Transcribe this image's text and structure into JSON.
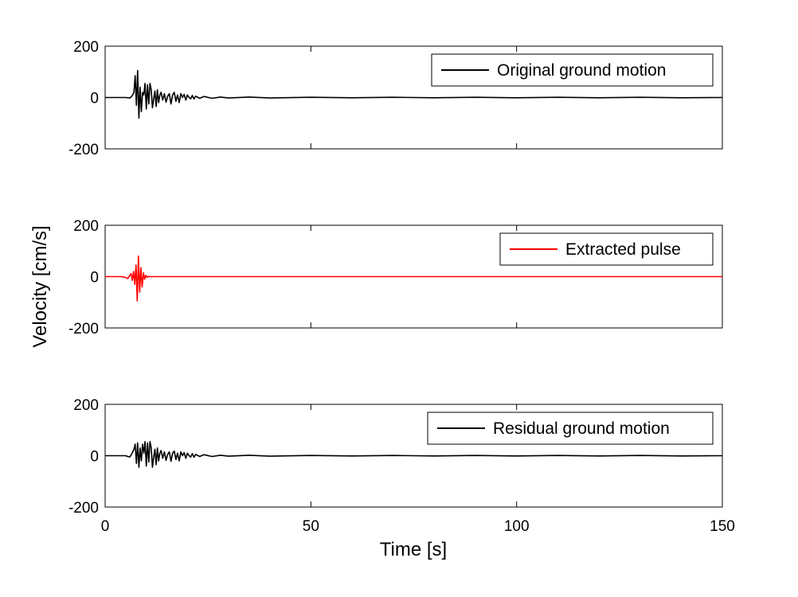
{
  "chart_data": [
    {
      "type": "line",
      "xlim": [
        0,
        150
      ],
      "ylim": [
        -200,
        200
      ],
      "yticks": [
        "200",
        "0",
        "-200"
      ],
      "legend": "top-right",
      "series": [
        {
          "name": "Original ground motion",
          "color": "#000000",
          "x": [
            0,
            5,
            6,
            6.5,
            7,
            7.3,
            7.6,
            7.9,
            8.2,
            8.5,
            8.8,
            9.1,
            9.4,
            9.7,
            10,
            10.3,
            10.6,
            10.9,
            11.2,
            11.5,
            11.8,
            12.1,
            12.4,
            12.7,
            13,
            13.3,
            13.6,
            14,
            14.4,
            14.8,
            15.2,
            15.6,
            16,
            16.4,
            16.8,
            17.2,
            17.6,
            18,
            18.4,
            18.8,
            19.2,
            19.6,
            20,
            20.4,
            20.8,
            21.2,
            21.6,
            22,
            23,
            24,
            26,
            28,
            30,
            35,
            40,
            50,
            60,
            70,
            80,
            90,
            100,
            110,
            120,
            130,
            140,
            150
          ],
          "y": [
            0,
            0,
            -2,
            5,
            20,
            85,
            -30,
            105,
            -80,
            40,
            -55,
            20,
            10,
            55,
            -45,
            50,
            -25,
            55,
            30,
            -40,
            -5,
            25,
            -35,
            30,
            -20,
            10,
            20,
            -10,
            15,
            -18,
            5,
            15,
            -25,
            10,
            20,
            -15,
            10,
            -20,
            15,
            0,
            12,
            -10,
            10,
            0,
            -5,
            8,
            -6,
            5,
            -3,
            4,
            -3,
            2,
            -2,
            2,
            -2,
            1,
            -1,
            1,
            -1,
            1,
            -1,
            1,
            -1,
            1,
            -1,
            0
          ]
        }
      ]
    },
    {
      "type": "line",
      "xlim": [
        0,
        150
      ],
      "ylim": [
        -200,
        200
      ],
      "yticks": [
        "200",
        "0",
        "-200"
      ],
      "legend": "top-right",
      "series": [
        {
          "name": "Extracted pulse",
          "color": "#ff0000",
          "x": [
            0,
            4,
            5,
            5.5,
            6,
            6.3,
            6.6,
            6.9,
            7.2,
            7.5,
            7.8,
            8.1,
            8.4,
            8.7,
            9.0,
            9.3,
            9.6,
            9.9,
            10.2,
            10.6,
            11,
            12,
            150
          ],
          "y": [
            0,
            0,
            -3,
            -8,
            5,
            12,
            -15,
            20,
            -30,
            45,
            -95,
            80,
            -60,
            35,
            -40,
            15,
            -10,
            5,
            -3,
            1,
            0,
            0,
            0
          ]
        }
      ]
    },
    {
      "type": "line",
      "xlim": [
        0,
        150
      ],
      "ylim": [
        -200,
        200
      ],
      "yticks": [
        "200",
        "0",
        "-200"
      ],
      "xticks": [
        "0",
        "50",
        "100",
        "150"
      ],
      "legend": "top-right",
      "series": [
        {
          "name": "Residual ground motion",
          "color": "#000000",
          "x": [
            0,
            4,
            5,
            5.5,
            6,
            6.5,
            7,
            7.3,
            7.6,
            7.9,
            8.2,
            8.5,
            8.8,
            9.1,
            9.4,
            9.7,
            10,
            10.3,
            10.6,
            10.9,
            11.2,
            11.5,
            11.8,
            12.1,
            12.4,
            12.7,
            13,
            13.3,
            13.6,
            14,
            14.4,
            14.8,
            15.2,
            15.6,
            16,
            16.4,
            16.8,
            17.2,
            17.6,
            18,
            18.4,
            18.8,
            19.2,
            19.6,
            20,
            20.4,
            20.8,
            21.2,
            21.6,
            22,
            23,
            24,
            26,
            28,
            30,
            35,
            40,
            50,
            60,
            70,
            80,
            90,
            100,
            110,
            120,
            130,
            140,
            150
          ],
          "y": [
            0,
            0,
            0,
            -3,
            -5,
            8,
            25,
            45,
            -30,
            50,
            -45,
            30,
            -20,
            45,
            10,
            55,
            -40,
            50,
            -25,
            55,
            30,
            -45,
            -5,
            25,
            -35,
            30,
            -20,
            10,
            20,
            -10,
            15,
            -18,
            5,
            15,
            -22,
            10,
            18,
            -15,
            10,
            -20,
            15,
            0,
            12,
            -10,
            10,
            0,
            -5,
            8,
            -6,
            5,
            -3,
            4,
            -3,
            2,
            -2,
            2,
            -2,
            1,
            -1,
            1,
            -1,
            1,
            -1,
            1,
            -1,
            1,
            -1,
            0
          ]
        }
      ]
    }
  ],
  "labels": {
    "ylabel": "Velocity [cm/s]",
    "xlabel": "Time [s]"
  }
}
